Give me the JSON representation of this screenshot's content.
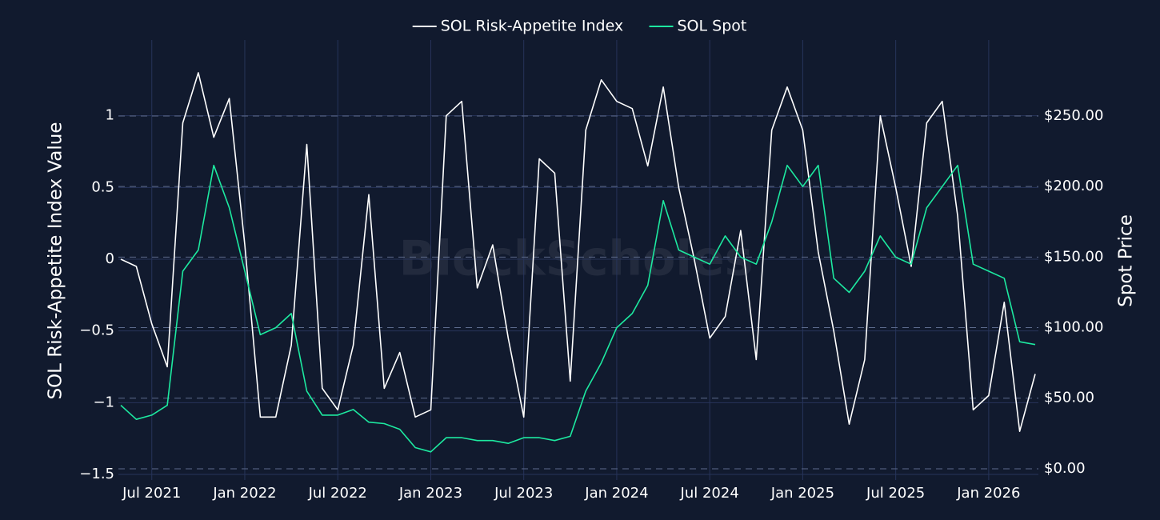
{
  "chart_data": {
    "type": "line",
    "watermark": "BlockScholes",
    "ylabel": "SOL Risk-Appetite Index Value",
    "y2label": "Spot Price",
    "x": [
      "2021-05",
      "2021-06",
      "2021-07",
      "2021-08",
      "2021-09",
      "2021-10",
      "2021-11",
      "2021-12",
      "2022-01",
      "2022-02",
      "2022-03",
      "2022-04",
      "2022-05",
      "2022-06",
      "2022-07",
      "2022-08",
      "2022-09",
      "2022-10",
      "2022-11",
      "2022-12",
      "2023-01",
      "2023-02",
      "2023-03",
      "2023-04",
      "2023-05",
      "2023-06",
      "2023-07",
      "2023-08",
      "2023-09",
      "2023-10",
      "2023-11",
      "2023-12",
      "2024-01",
      "2024-02",
      "2024-03",
      "2024-04",
      "2024-05",
      "2024-06",
      "2024-07",
      "2024-08",
      "2024-09",
      "2024-10",
      "2024-11",
      "2024-12",
      "2025-01",
      "2025-02",
      "2025-03",
      "2025-04",
      "2025-05",
      "2025-06",
      "2025-07",
      "2025-08",
      "2025-09",
      "2025-10",
      "2025-11",
      "2025-12",
      "2026-01",
      "2026-02",
      "2026-03",
      "2026-04"
    ],
    "series": [
      {
        "name": "SOL Risk-Appetite Index",
        "color": "#ffffff",
        "values": [
          0.0,
          -0.05,
          -0.45,
          -0.75,
          0.95,
          1.3,
          0.85,
          1.12,
          0.1,
          -1.1,
          -1.1,
          -0.6,
          0.8,
          -0.9,
          -1.05,
          -0.6,
          0.45,
          -0.9,
          -0.65,
          -1.1,
          -1.05,
          1.0,
          1.1,
          -0.2,
          0.1,
          -0.55,
          -1.1,
          0.7,
          0.6,
          -0.85,
          0.9,
          1.25,
          1.1,
          1.05,
          0.65,
          1.2,
          0.5,
          0.0,
          -0.55,
          -0.4,
          0.2,
          -0.7,
          0.9,
          1.2,
          0.9,
          0.05,
          -0.5,
          -1.15,
          -0.7,
          1.0,
          0.5,
          -0.05,
          0.95,
          1.1,
          0.3,
          -1.05,
          -0.95,
          -0.3,
          -1.2,
          -0.8
        ]
      },
      {
        "name": "SOL Spot",
        "color": "#1de9a0",
        "axis": "y2",
        "values": [
          45,
          35,
          38,
          45,
          140,
          155,
          215,
          185,
          140,
          95,
          100,
          110,
          55,
          38,
          38,
          42,
          33,
          32,
          28,
          15,
          12,
          22,
          22,
          20,
          20,
          18,
          22,
          22,
          20,
          23,
          55,
          75,
          100,
          110,
          130,
          190,
          155,
          150,
          145,
          165,
          150,
          145,
          175,
          215,
          200,
          215,
          135,
          125,
          140,
          165,
          150,
          145,
          185,
          200,
          215,
          145,
          140,
          135,
          90,
          88
        ]
      }
    ],
    "xlim": [
      "2021-05",
      "2026-04"
    ],
    "xticks": [
      {
        "value": "2021-07",
        "label": "Jul 2021"
      },
      {
        "value": "2022-01",
        "label": "Jan 2022"
      },
      {
        "value": "2022-07",
        "label": "Jul 2022"
      },
      {
        "value": "2023-01",
        "label": "Jan 2023"
      },
      {
        "value": "2023-07",
        "label": "Jul 2023"
      },
      {
        "value": "2024-01",
        "label": "Jan 2024"
      },
      {
        "value": "2024-07",
        "label": "Jul 2024"
      },
      {
        "value": "2025-01",
        "label": "Jan 2025"
      },
      {
        "value": "2025-07",
        "label": "Jul 2025"
      },
      {
        "value": "2026-01",
        "label": "Jan 2026"
      }
    ],
    "ylim": [
      -1.5,
      1.5
    ],
    "yticks": [
      {
        "value": -1.5,
        "label": "−1.5"
      },
      {
        "value": -1,
        "label": "−1"
      },
      {
        "value": -0.5,
        "label": "−0.5"
      },
      0,
      0.5,
      1
    ],
    "y2lim": [
      -4,
      301
    ],
    "y2ticks": [
      {
        "value": 0,
        "label": "$0.00"
      },
      {
        "value": 50,
        "label": "$50.00"
      },
      {
        "value": 100,
        "label": "$100.00"
      },
      {
        "value": 150,
        "label": "$150.00"
      },
      {
        "value": 200,
        "label": "$200.00"
      },
      {
        "value": 250,
        "label": "$250.00"
      }
    ],
    "grid": true,
    "legend": "top"
  }
}
